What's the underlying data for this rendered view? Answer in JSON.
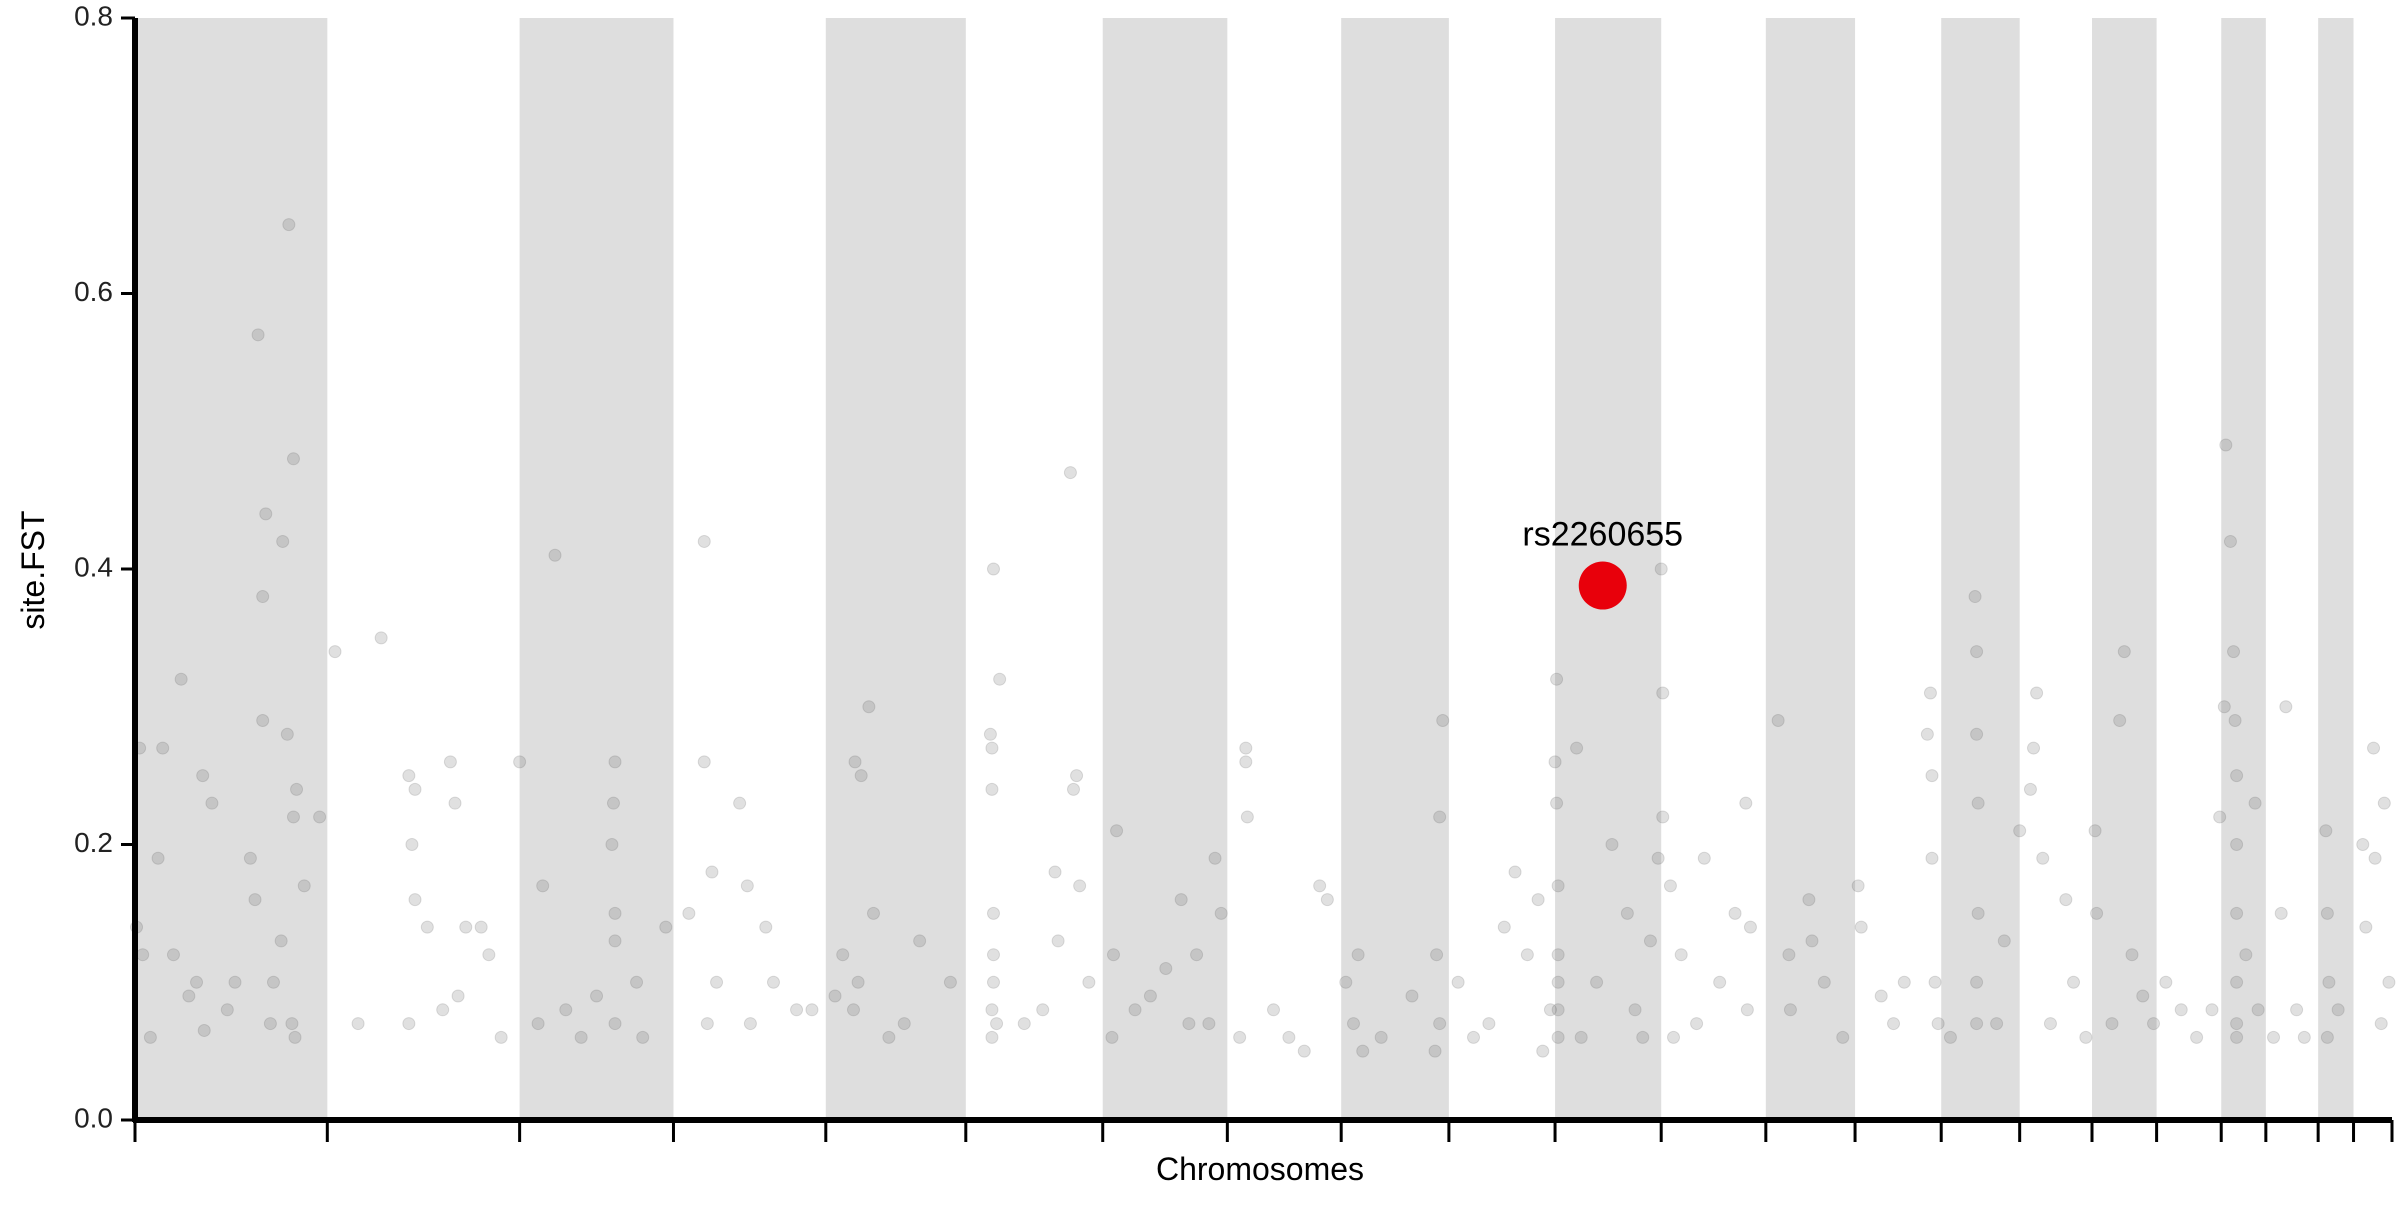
{
  "chart_data": {
    "type": "scatter",
    "x_label": "Chromosomes",
    "y_label": "site.FST",
    "xlim": [
      0,
      1467
    ],
    "ylim": [
      0,
      0.8
    ],
    "yticks": [
      {
        "value": 0,
        "label": "0.0"
      },
      0.2,
      0.4,
      0.6,
      0.8
    ],
    "chromosome_boundaries": [
      0,
      125,
      250,
      350,
      449,
      540,
      629,
      710,
      784,
      854,
      923,
      992,
      1060,
      1118,
      1174,
      1225,
      1272,
      1314,
      1356,
      1385,
      1419,
      1442,
      1467
    ],
    "band_color": "#dedede",
    "point_color": "#555555",
    "point_opacity": 0.18,
    "x": [
      1,
      5,
      3,
      15,
      18,
      30,
      40,
      44,
      50,
      60,
      80,
      85,
      83,
      96,
      99,
      103,
      83,
      105,
      103,
      110,
      120,
      75,
      90,
      102,
      104,
      45,
      10,
      25,
      35,
      65,
      100,
      95,
      88,
      78,
      130,
      160,
      178,
      182,
      180,
      205,
      208,
      215,
      225,
      230,
      145,
      178,
      200,
      182,
      238,
      190,
      210,
      250,
      273,
      265,
      312,
      311,
      310,
      312,
      312,
      312,
      262,
      290,
      326,
      345,
      280,
      300,
      330,
      370,
      370,
      375,
      393,
      398,
      378,
      372,
      400,
      415,
      430,
      440,
      360,
      410,
      468,
      472,
      477,
      467,
      470,
      480,
      455,
      490,
      460,
      500,
      510,
      530,
      558,
      562,
      556,
      557,
      557,
      558,
      558,
      558,
      557,
      557,
      560,
      578,
      598,
      608,
      612,
      614,
      610,
      600,
      620,
      590,
      638,
      636,
      635,
      650,
      670,
      680,
      690,
      698,
      702,
      706,
      660,
      685,
      722,
      722,
      723,
      718,
      740,
      750,
      770,
      775,
      760,
      787,
      795,
      792,
      798,
      810,
      830,
      846,
      848,
      845,
      850,
      848,
      860,
      880,
      890,
      897,
      905,
      915,
      912,
      920,
      870,
      924,
      923,
      924,
      925,
      925,
      925,
      925,
      925,
      937,
      940,
      950,
      960,
      970,
      975,
      985,
      990,
      980,
      992,
      993,
      993,
      998,
      1005,
      1020,
      1030,
      1040,
      1047,
      1048,
      1050,
      1000,
      1015,
      1068,
      1075,
      1076,
      1088,
      1090,
      1098,
      1110,
      1120,
      1122,
      1135,
      1143,
      1150,
      1165,
      1167,
      1168,
      1168,
      1170,
      1172,
      1196,
      1197,
      1197,
      1198,
      1198,
      1197,
      1197,
      1210,
      1215,
      1180,
      1225,
      1232,
      1236,
      1234,
      1240,
      1255,
      1260,
      1245,
      1268,
      1274,
      1275,
      1290,
      1293,
      1298,
      1305,
      1312,
      1285,
      1320,
      1330,
      1340,
      1350,
      1359,
      1358,
      1362,
      1355,
      1364,
      1365,
      1366,
      1366,
      1366,
      1366,
      1366,
      1366,
      1378,
      1380,
      1372,
      1398,
      1395,
      1405,
      1410,
      1390,
      1424,
      1425,
      1426,
      1425,
      1432,
      1448,
      1450,
      1455,
      1456,
      1460,
      1462,
      1465
    ],
    "values": [
      0.14,
      0.12,
      0.27,
      0.19,
      0.27,
      0.32,
      0.1,
      0.25,
      0.23,
      0.08,
      0.57,
      0.44,
      0.38,
      0.42,
      0.28,
      0.48,
      0.29,
      0.24,
      0.22,
      0.17,
      0.22,
      0.19,
      0.1,
      0.07,
      0.06,
      0.065,
      0.06,
      0.12,
      0.09,
      0.1,
      0.65,
      0.13,
      0.07,
      0.16,
      0.34,
      0.35,
      0.25,
      0.24,
      0.2,
      0.26,
      0.23,
      0.14,
      0.14,
      0.12,
      0.07,
      0.07,
      0.08,
      0.16,
      0.06,
      0.14,
      0.09,
      0.26,
      0.41,
      0.17,
      0.26,
      0.23,
      0.2,
      0.15,
      0.13,
      0.07,
      0.07,
      0.06,
      0.1,
      0.14,
      0.08,
      0.09,
      0.06,
      0.42,
      0.26,
      0.18,
      0.23,
      0.17,
      0.1,
      0.07,
      0.07,
      0.1,
      0.08,
      0.08,
      0.15,
      0.14,
      0.26,
      0.25,
      0.3,
      0.08,
      0.1,
      0.15,
      0.09,
      0.06,
      0.12,
      0.07,
      0.13,
      0.1,
      0.4,
      0.32,
      0.28,
      0.27,
      0.24,
      0.15,
      0.12,
      0.1,
      0.08,
      0.06,
      0.07,
      0.07,
      0.18,
      0.47,
      0.25,
      0.17,
      0.24,
      0.13,
      0.1,
      0.08,
      0.21,
      0.12,
      0.06,
      0.08,
      0.11,
      0.16,
      0.12,
      0.07,
      0.19,
      0.15,
      0.09,
      0.07,
      0.27,
      0.26,
      0.22,
      0.06,
      0.08,
      0.06,
      0.17,
      0.16,
      0.05,
      0.1,
      0.12,
      0.07,
      0.05,
      0.06,
      0.09,
      0.12,
      0.07,
      0.05,
      0.29,
      0.22,
      0.1,
      0.07,
      0.14,
      0.18,
      0.12,
      0.05,
      0.16,
      0.08,
      0.06,
      0.32,
      0.26,
      0.23,
      0.17,
      0.12,
      0.1,
      0.08,
      0.06,
      0.27,
      0.06,
      0.1,
      0.2,
      0.15,
      0.08,
      0.13,
      0.19,
      0.06,
      0.4,
      0.31,
      0.22,
      0.17,
      0.12,
      0.19,
      0.1,
      0.15,
      0.23,
      0.08,
      0.14,
      0.06,
      0.07,
      0.29,
      0.12,
      0.08,
      0.16,
      0.13,
      0.1,
      0.06,
      0.17,
      0.14,
      0.09,
      0.07,
      0.1,
      0.28,
      0.31,
      0.25,
      0.19,
      0.1,
      0.07,
      0.38,
      0.34,
      0.28,
      0.23,
      0.15,
      0.1,
      0.07,
      0.07,
      0.13,
      0.06,
      0.21,
      0.24,
      0.31,
      0.27,
      0.19,
      0.16,
      0.1,
      0.07,
      0.06,
      0.21,
      0.15,
      0.29,
      0.34,
      0.12,
      0.09,
      0.07,
      0.07,
      0.1,
      0.08,
      0.06,
      0.08,
      0.49,
      0.3,
      0.42,
      0.22,
      0.34,
      0.29,
      0.25,
      0.2,
      0.15,
      0.1,
      0.07,
      0.06,
      0.23,
      0.08,
      0.12,
      0.3,
      0.15,
      0.08,
      0.06,
      0.06,
      0.21,
      0.15,
      0.1,
      0.06,
      0.08,
      0.2,
      0.14,
      0.27,
      0.19,
      0.07,
      0.23,
      0.1
    ],
    "highlight": {
      "label": "rs2260655",
      "x": 954,
      "y": 0.388,
      "color": "#e8000b"
    }
  }
}
